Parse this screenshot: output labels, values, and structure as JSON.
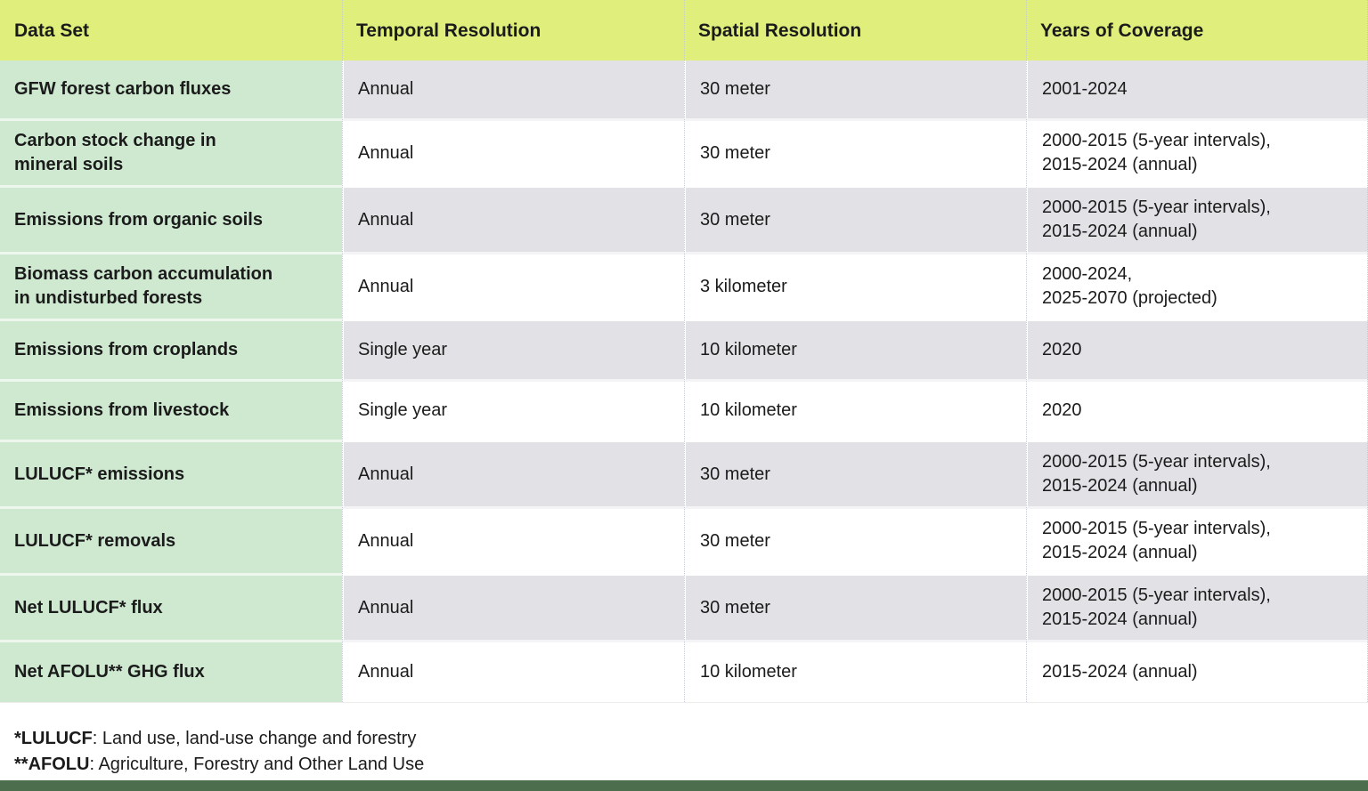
{
  "colors": {
    "header_bg": "#e0ef7c",
    "dataset_col_bg": "#cfe9d1",
    "row_alt_bg": "#e2e2e6",
    "row_bg": "#ffffff",
    "bottom_bar": "#4d6e4d",
    "divider": "#c7cbd3",
    "text": "#1b1b1b"
  },
  "table": {
    "columns": [
      "Data Set",
      "Temporal Resolution",
      "Spatial Resolution",
      "Years of Coverage"
    ],
    "rows": [
      {
        "dataset": "GFW forest carbon fluxes",
        "temporal": "Annual",
        "spatial": "30 meter",
        "years": "2001-2024"
      },
      {
        "dataset": "Carbon stock change in\nmineral soils",
        "temporal": "Annual",
        "spatial": "30 meter",
        "years": "2000-2015 (5-year intervals),\n2015-2024 (annual)"
      },
      {
        "dataset": "Emissions from organic soils",
        "temporal": "Annual",
        "spatial": "30 meter",
        "years": "2000-2015 (5-year intervals),\n2015-2024 (annual)"
      },
      {
        "dataset": "Biomass carbon accumulation\nin undisturbed forests",
        "temporal": "Annual",
        "spatial": "3 kilometer",
        "years": "2000-2024,\n2025-2070 (projected)"
      },
      {
        "dataset": "Emissions from croplands",
        "temporal": "Single year",
        "spatial": "10 kilometer",
        "years": "2020"
      },
      {
        "dataset": "Emissions from livestock",
        "temporal": "Single year",
        "spatial": "10 kilometer",
        "years": "2020"
      },
      {
        "dataset": "LULUCF* emissions",
        "temporal": "Annual",
        "spatial": "30 meter",
        "years": "2000-2015 (5-year intervals),\n2015-2024 (annual)"
      },
      {
        "dataset": "LULUCF* removals",
        "temporal": "Annual",
        "spatial": "30 meter",
        "years": "2000-2015 (5-year intervals),\n2015-2024 (annual)"
      },
      {
        "dataset": "Net LULUCF* flux",
        "temporal": "Annual",
        "spatial": "30 meter",
        "years": "2000-2015 (5-year intervals),\n2015-2024 (annual)"
      },
      {
        "dataset": "Net AFOLU** GHG flux",
        "temporal": "Annual",
        "spatial": "10 kilometer",
        "years": "2015-2024 (annual)"
      }
    ]
  },
  "footnotes": [
    {
      "term": "*LULUCF",
      "definition": ": Land use, land-use change and forestry"
    },
    {
      "term": "**AFOLU",
      "definition": ": Agriculture, Forestry and Other Land Use"
    }
  ],
  "chart_data": {
    "type": "table",
    "title": "",
    "columns": [
      "Data Set",
      "Temporal Resolution",
      "Spatial Resolution",
      "Years of Coverage"
    ],
    "rows": [
      [
        "GFW forest carbon fluxes",
        "Annual",
        "30 meter",
        "2001-2024"
      ],
      [
        "Carbon stock change in mineral soils",
        "Annual",
        "30 meter",
        "2000-2015 (5-year intervals), 2015-2024 (annual)"
      ],
      [
        "Emissions from organic soils",
        "Annual",
        "30 meter",
        "2000-2015 (5-year intervals), 2015-2024 (annual)"
      ],
      [
        "Biomass carbon accumulation in undisturbed forests",
        "Annual",
        "3 kilometer",
        "2000-2024, 2025-2070 (projected)"
      ],
      [
        "Emissions from croplands",
        "Single year",
        "10 kilometer",
        "2020"
      ],
      [
        "Emissions from livestock",
        "Single year",
        "10 kilometer",
        "2020"
      ],
      [
        "LULUCF* emissions",
        "Annual",
        "30 meter",
        "2000-2015 (5-year intervals), 2015-2024 (annual)"
      ],
      [
        "LULUCF* removals",
        "Annual",
        "30 meter",
        "2000-2015 (5-year intervals), 2015-2024 (annual)"
      ],
      [
        "Net LULUCF* flux",
        "Annual",
        "30 meter",
        "2000-2015 (5-year intervals), 2015-2024 (annual)"
      ],
      [
        "Net AFOLU** GHG flux",
        "Annual",
        "10 kilometer",
        "2015-2024 (annual)"
      ]
    ],
    "footnotes": [
      "*LULUCF: Land use, land-use change and forestry",
      "**AFOLU: Agriculture, Forestry and Other Land Use"
    ],
    "layout_hints": {
      "header_fill": "#e0ef7c",
      "first_column_fill": "#cfe9d1",
      "zebra_fill": "#e2e2e6"
    }
  }
}
